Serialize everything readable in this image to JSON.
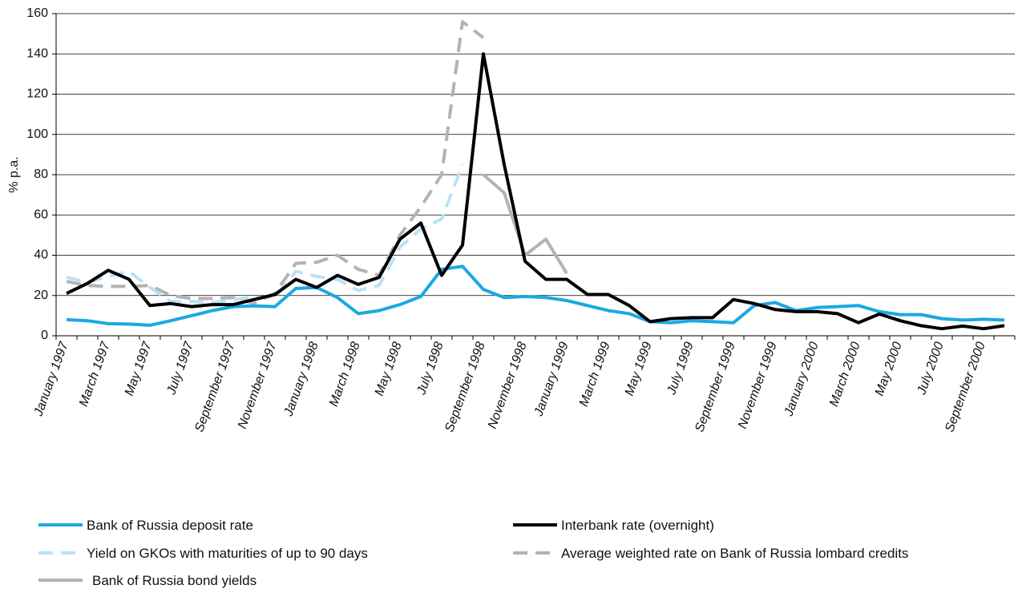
{
  "chart_data": {
    "type": "line",
    "ylabel": "% p.a.",
    "ylim": [
      0,
      160
    ],
    "yticks": [
      0,
      20,
      40,
      60,
      80,
      100,
      120,
      140,
      160
    ],
    "grid": "horizontal",
    "legend_position": "bottom",
    "x": [
      "January 1997",
      "February 1997",
      "March 1997",
      "April 1997",
      "May 1997",
      "June 1997",
      "July 1997",
      "August 1997",
      "September 1997",
      "October 1997",
      "November 1997",
      "December 1997",
      "January 1998",
      "February 1998",
      "March 1998",
      "April 1998",
      "May 1998",
      "June 1998",
      "July 1998",
      "August 1998",
      "September 1998",
      "October 1998",
      "November 1998",
      "December 1998",
      "January 1999",
      "February 1999",
      "March 1999",
      "April 1999",
      "May 1999",
      "June 1999",
      "July 1999",
      "August 1999",
      "September 1999",
      "October 1999",
      "November 1999",
      "December 1999",
      "January 2000",
      "February 2000",
      "March 2000",
      "April 2000",
      "May 2000",
      "June 2000",
      "July 2000",
      "August 2000",
      "September 2000",
      "October 2000"
    ],
    "x_tick_labels": [
      "January 1997",
      "March 1997",
      "May 1997",
      "July 1997",
      "September 1997",
      "November 1997",
      "January 1998",
      "March 1998",
      "May 1998",
      "July 1998",
      "September 1998",
      "November 1998",
      "January 1999",
      "March 1999",
      "May 1999",
      "July 1999",
      "September 1999",
      "November 1999",
      "January 2000",
      "March 2000",
      "May 2000",
      "July 2000",
      "September 2000"
    ],
    "series": [
      {
        "name": "Bank of Russia deposit rate",
        "color": "#1ba9e1",
        "style": "solid",
        "values": [
          8,
          7.5,
          6,
          5.8,
          5.2,
          7.5,
          10,
          12.5,
          14.5,
          14.8,
          14.5,
          23.5,
          24,
          19,
          11,
          12.5,
          15.5,
          19.5,
          33,
          34.5,
          23,
          19,
          19.5,
          19,
          17.5,
          15,
          12.5,
          11,
          7,
          6.5,
          7.5,
          7,
          6.5,
          15,
          16.5,
          12.5,
          14,
          14.5,
          15,
          12,
          10.5,
          10.5,
          8.5,
          7.8,
          8.2,
          7.8
        ]
      },
      {
        "name": "Interbank rate (overnight)",
        "color": "#000000",
        "style": "solid",
        "values": [
          21,
          26,
          32.5,
          28,
          15,
          16,
          14.5,
          15.5,
          15.5,
          18,
          20.5,
          28,
          24,
          30,
          25.5,
          29,
          48,
          56,
          30,
          45,
          140,
          85,
          37,
          28,
          28,
          20.5,
          20.5,
          15,
          7,
          8.5,
          9,
          9,
          18,
          16,
          13,
          12,
          12,
          11,
          6.5,
          10.8,
          7.5,
          5,
          3.5,
          4.8,
          3.5,
          5
        ]
      },
      {
        "name": "Yield on GKOs with maturities of up to 90 days",
        "color": "#b9e2f5",
        "style": "dashed",
        "values": [
          29,
          26.5,
          29.5,
          32,
          24,
          17,
          17,
          16.5,
          18,
          19,
          19,
          32,
          29.5,
          28,
          22.5,
          25,
          44,
          53,
          58,
          85,
          null,
          null,
          null,
          null,
          null,
          null,
          null,
          null,
          null,
          null,
          null,
          null,
          null,
          null,
          null,
          null,
          null,
          null,
          null,
          null,
          null,
          null,
          null,
          null,
          null,
          null
        ]
      },
      {
        "name": "Average weighted rate on Bank of Russia lombard credits",
        "color": "#b3b3b3",
        "style": "dashed",
        "values": [
          27,
          25,
          24.5,
          24.5,
          25,
          20,
          18.5,
          18.5,
          19,
          16,
          21,
          36,
          36.5,
          40,
          33,
          30,
          50,
          64,
          80,
          156,
          148,
          null,
          null,
          null,
          null,
          null,
          null,
          null,
          null,
          null,
          null,
          null,
          null,
          null,
          null,
          null,
          null,
          null,
          null,
          null,
          null,
          null,
          null,
          null,
          null,
          null
        ]
      },
      {
        "name": "Bank of Russia bond yields",
        "color": "#b3b3b3",
        "style": "solid",
        "values": [
          null,
          null,
          null,
          null,
          null,
          null,
          null,
          null,
          null,
          null,
          null,
          null,
          null,
          null,
          null,
          null,
          null,
          null,
          null,
          null,
          80,
          71,
          40,
          48,
          31,
          null,
          null,
          null,
          null,
          null,
          null,
          null,
          null,
          null,
          null,
          null,
          null,
          null,
          null,
          null,
          null,
          null,
          null,
          null,
          null,
          null
        ]
      }
    ]
  }
}
